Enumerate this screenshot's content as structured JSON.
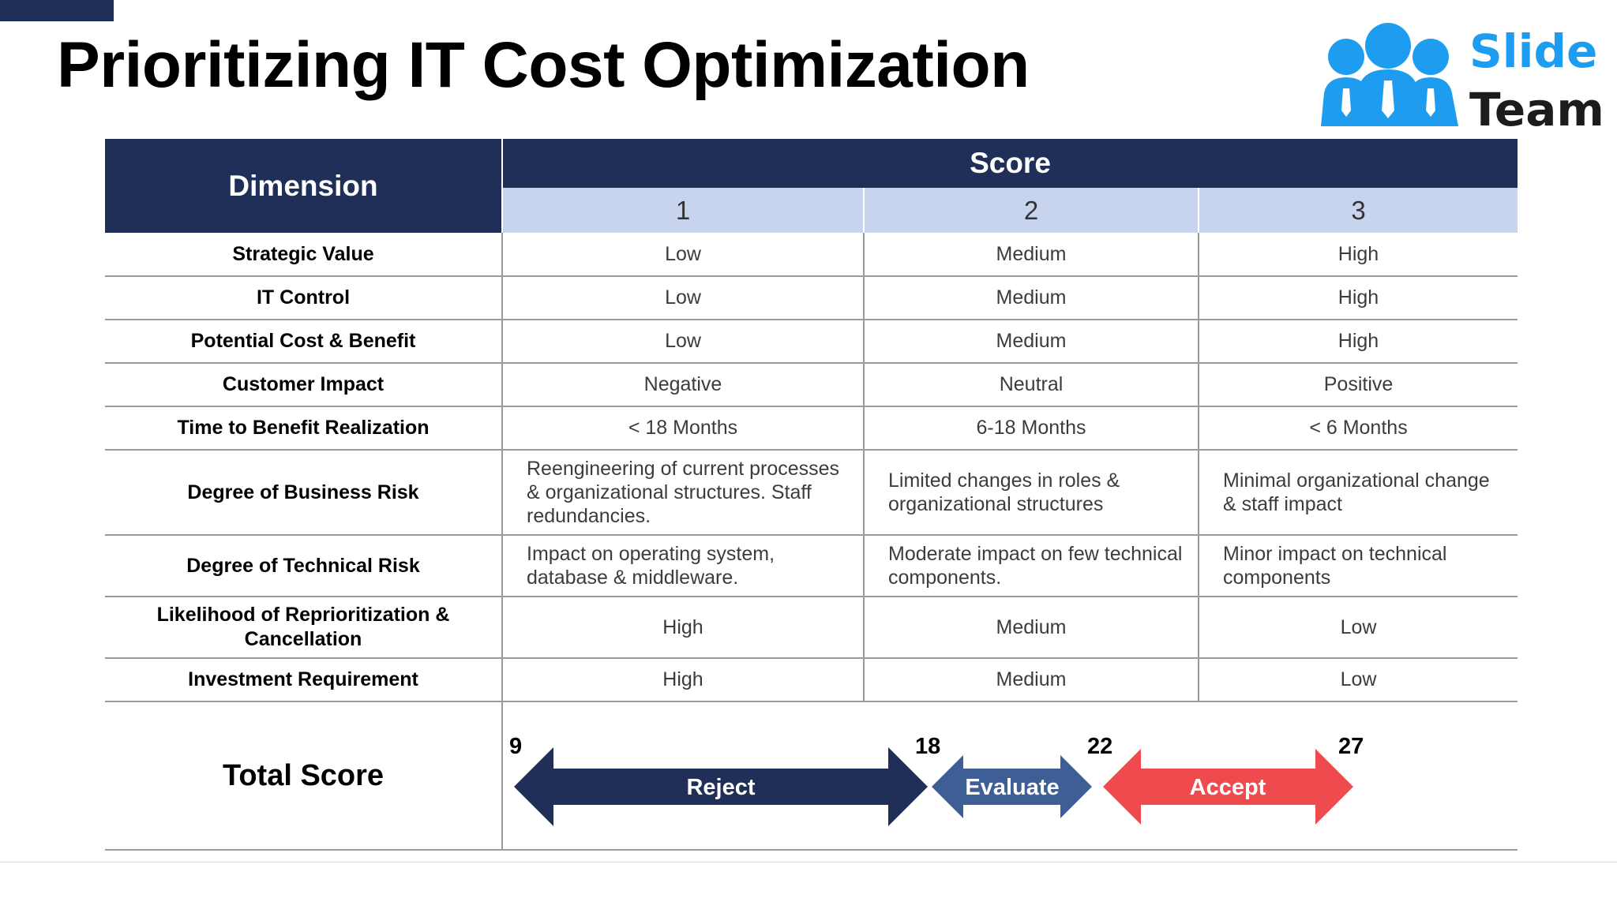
{
  "title": "Prioritizing IT Cost Optimization",
  "logo": {
    "line1": "Slide",
    "line2": "Team"
  },
  "table": {
    "dimension_header": "Dimension",
    "score_header": "Score",
    "score_columns": [
      "1",
      "2",
      "3"
    ],
    "rows": [
      {
        "dimension": "Strategic Value",
        "values": [
          "Low",
          "Medium",
          "High"
        ]
      },
      {
        "dimension": "IT Control",
        "values": [
          "Low",
          "Medium",
          "High"
        ]
      },
      {
        "dimension": "Potential Cost & Benefit",
        "values": [
          "Low",
          "Medium",
          "High"
        ]
      },
      {
        "dimension": "Customer Impact",
        "values": [
          "Negative",
          "Neutral",
          "Positive"
        ]
      },
      {
        "dimension": "Time to Benefit Realization",
        "values": [
          "< 18 Months",
          "6-18 Months",
          "< 6 Months"
        ]
      },
      {
        "dimension": "Degree of Business Risk",
        "values": [
          "Reengineering of current processes & organizational structures. Staff redundancies.",
          "Limited changes in roles & organizational structures",
          "Minimal organizational change & staff impact"
        ]
      },
      {
        "dimension": "Degree of Technical Risk",
        "values": [
          "Impact on operating system, database & middleware.",
          "Moderate impact on few technical components.",
          "Minor impact on technical components"
        ]
      },
      {
        "dimension": "Likelihood of Reprioritization & Cancellation",
        "values": [
          "High",
          "Medium",
          "Low"
        ]
      },
      {
        "dimension": "Investment Requirement",
        "values": [
          "High",
          "Medium",
          "Low"
        ]
      }
    ],
    "total_label": "Total Score",
    "total_ranges": {
      "ticks": [
        "9",
        "18",
        "22",
        "27"
      ],
      "bands": [
        {
          "label": "Reject",
          "from": 9,
          "to": 18,
          "color": "#1f2f57"
        },
        {
          "label": "Evaluate",
          "from": 18,
          "to": 22,
          "color": "#3e5e96"
        },
        {
          "label": "Accept",
          "from": 22,
          "to": 27,
          "color": "#ef4b4f"
        }
      ]
    }
  }
}
